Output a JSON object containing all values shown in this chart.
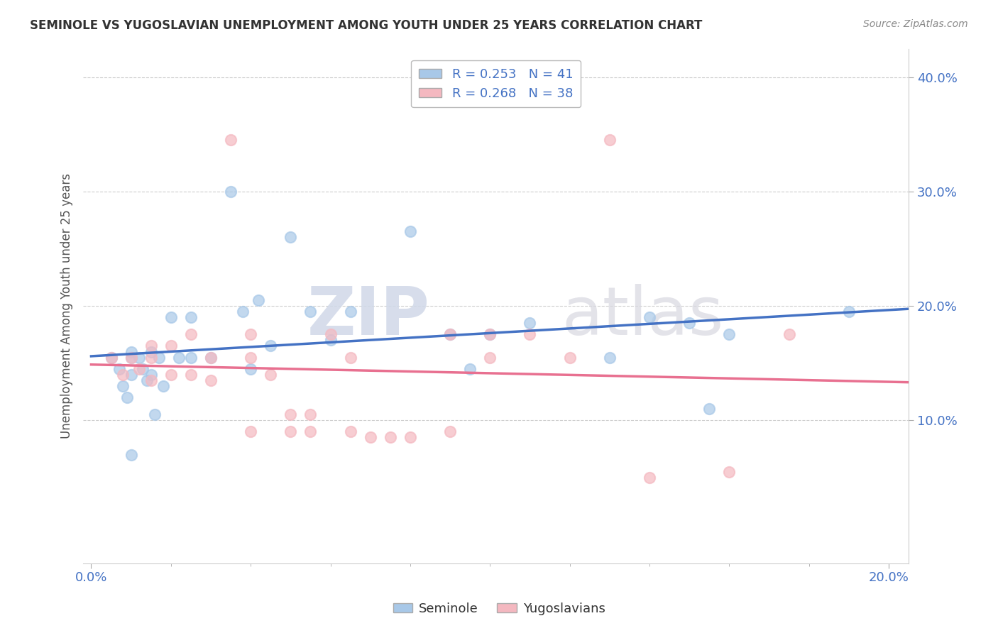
{
  "title": "SEMINOLE VS YUGOSLAVIAN UNEMPLOYMENT AMONG YOUTH UNDER 25 YEARS CORRELATION CHART",
  "source": "Source: ZipAtlas.com",
  "ylabel": "Unemployment Among Youth under 25 years",
  "xlim": [
    -0.002,
    0.205
  ],
  "ylim": [
    -0.025,
    0.425
  ],
  "xticks": [
    0.0,
    0.2
  ],
  "yticks": [
    0.1,
    0.2,
    0.3,
    0.4
  ],
  "ytick_labels": [
    "10.0%",
    "20.0%",
    "30.0%",
    "40.0%"
  ],
  "xtick_labels": [
    "0.0%",
    "20.0%"
  ],
  "legend_R1": "R = 0.253",
  "legend_N1": "N = 41",
  "legend_R2": "R = 0.268",
  "legend_N2": "N = 38",
  "color_seminole": "#a8c8e8",
  "color_yugoslavian": "#f4b8c0",
  "color_line_seminole": "#4472c4",
  "color_line_yugoslavian": "#e87090",
  "color_text": "#4472c4",
  "watermark_zip": "ZIP",
  "watermark_atlas": "atlas",
  "background_color": "#ffffff",
  "grid_color": "#cccccc",
  "seminole_x": [
    0.005,
    0.007,
    0.008,
    0.009,
    0.01,
    0.01,
    0.01,
    0.01,
    0.012,
    0.013,
    0.014,
    0.015,
    0.015,
    0.016,
    0.017,
    0.018,
    0.02,
    0.022,
    0.025,
    0.025,
    0.03,
    0.035,
    0.038,
    0.04,
    0.042,
    0.045,
    0.05,
    0.055,
    0.06,
    0.065,
    0.08,
    0.09,
    0.095,
    0.1,
    0.11,
    0.13,
    0.14,
    0.15,
    0.155,
    0.16,
    0.19
  ],
  "seminole_y": [
    0.155,
    0.145,
    0.13,
    0.12,
    0.155,
    0.14,
    0.16,
    0.07,
    0.155,
    0.145,
    0.135,
    0.16,
    0.14,
    0.105,
    0.155,
    0.13,
    0.19,
    0.155,
    0.19,
    0.155,
    0.155,
    0.3,
    0.195,
    0.145,
    0.205,
    0.165,
    0.26,
    0.195,
    0.17,
    0.195,
    0.265,
    0.175,
    0.145,
    0.175,
    0.185,
    0.155,
    0.19,
    0.185,
    0.11,
    0.175,
    0.195
  ],
  "yugoslavian_x": [
    0.005,
    0.008,
    0.01,
    0.012,
    0.015,
    0.015,
    0.015,
    0.02,
    0.02,
    0.025,
    0.025,
    0.03,
    0.03,
    0.035,
    0.04,
    0.04,
    0.04,
    0.045,
    0.05,
    0.05,
    0.055,
    0.055,
    0.06,
    0.065,
    0.065,
    0.07,
    0.075,
    0.08,
    0.09,
    0.09,
    0.1,
    0.1,
    0.11,
    0.12,
    0.13,
    0.14,
    0.16,
    0.175
  ],
  "yugoslavian_y": [
    0.155,
    0.14,
    0.155,
    0.145,
    0.165,
    0.155,
    0.135,
    0.165,
    0.14,
    0.175,
    0.14,
    0.155,
    0.135,
    0.345,
    0.175,
    0.155,
    0.09,
    0.14,
    0.105,
    0.09,
    0.105,
    0.09,
    0.175,
    0.155,
    0.09,
    0.085,
    0.085,
    0.085,
    0.175,
    0.09,
    0.175,
    0.155,
    0.175,
    0.155,
    0.345,
    0.05,
    0.055,
    0.175
  ]
}
